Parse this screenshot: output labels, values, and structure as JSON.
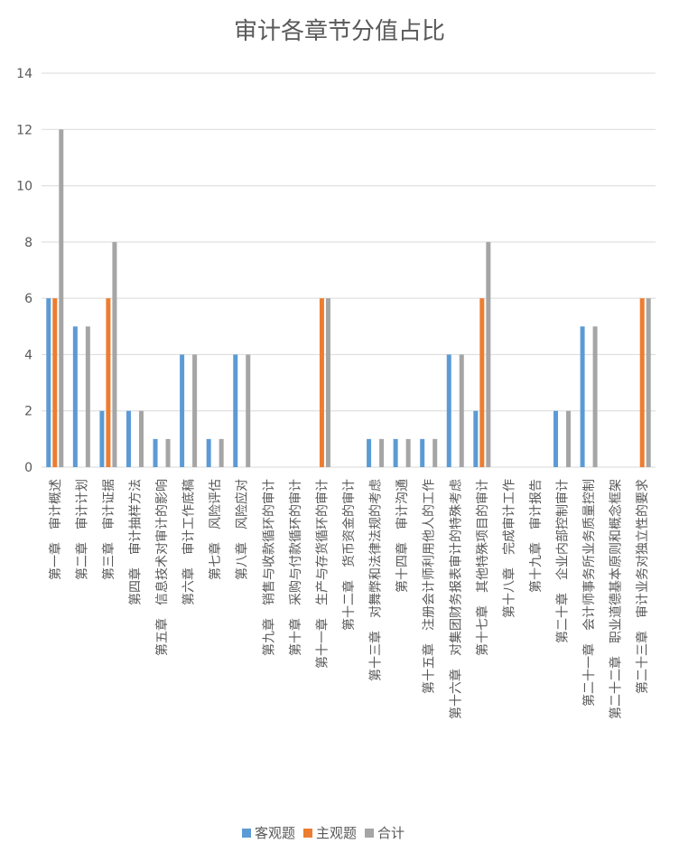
{
  "chart_data": {
    "type": "bar",
    "title": "审计各章节分值占比",
    "xlabel": "",
    "ylabel": "",
    "ylim": [
      0,
      14
    ],
    "yticks": [
      0,
      2,
      4,
      6,
      8,
      10,
      12,
      14
    ],
    "grid": true,
    "legend_position": "bottom",
    "categories": [
      "第一章　审计概述",
      "第二章　审计计划",
      "第三章　审计证据",
      "第四章　审计抽样方法",
      "第五章　信息技术对审计的影响",
      "第六章　审计工作底稿",
      "第七章　风险评估",
      "第八章　风险应对",
      "第九章　销售与收款循环的审计",
      "第十章　采购与付款循环的审计",
      "第十一章　生产与存货循环的审计",
      "第十二章　货币资金的审计",
      "第十三章　对舞弊和法律法规的考虑",
      "第十四章　审计沟通",
      "第十五章　注册会计师利用他人的工作",
      "第十六章　对集团财务报表审计的特殊考虑",
      "第十七章　其他特殊项目的审计",
      "第十八章　完成审计工作",
      "第十九章　审计报告",
      "第二十章　企业内部控制审计",
      "第二十一章　会计师事务所业务质量控制",
      "第二十二章　职业道德基本原则和概念框架",
      "第二十三章　审计业务对独立性的要求"
    ],
    "series": [
      {
        "name": "客观题",
        "color": "#5b9bd5",
        "values": [
          6,
          5,
          2,
          2,
          1,
          4,
          1,
          4,
          0,
          0,
          0,
          0,
          1,
          1,
          1,
          4,
          2,
          0,
          0,
          2,
          5,
          0,
          0
        ]
      },
      {
        "name": "主观题",
        "color": "#ed7d31",
        "values": [
          6,
          0,
          6,
          0,
          0,
          0,
          0,
          0,
          0,
          0,
          6,
          0,
          0,
          0,
          0,
          0,
          6,
          0,
          0,
          0,
          0,
          0,
          6
        ]
      },
      {
        "name": "合计",
        "color": "#a5a5a5",
        "values": [
          12,
          5,
          8,
          2,
          1,
          4,
          1,
          4,
          0,
          0,
          6,
          0,
          1,
          1,
          1,
          4,
          8,
          0,
          0,
          2,
          5,
          0,
          6
        ]
      }
    ]
  }
}
